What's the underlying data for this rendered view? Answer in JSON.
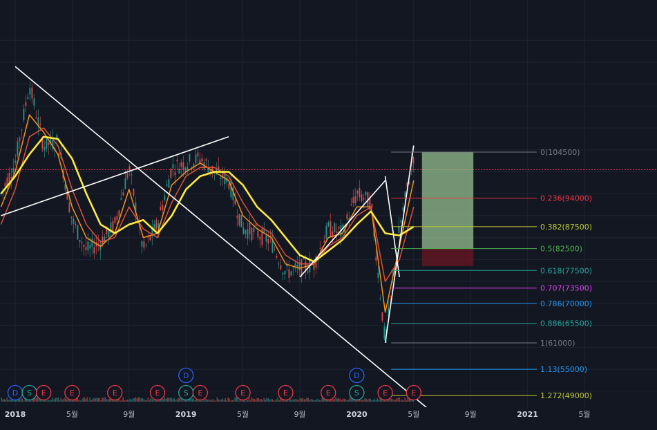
{
  "chart_data": {
    "type": "line",
    "title": "",
    "xlabel": "",
    "ylabel": "",
    "x_ticks": [
      {
        "label": "2018",
        "date": "2018-01",
        "bold": true
      },
      {
        "label": "5월",
        "date": "2018-05",
        "bold": false
      },
      {
        "label": "9월",
        "date": "2018-09",
        "bold": false
      },
      {
        "label": "2019",
        "date": "2019-01",
        "bold": true
      },
      {
        "label": "5월",
        "date": "2019-05",
        "bold": false
      },
      {
        "label": "9월",
        "date": "2019-09",
        "bold": false
      },
      {
        "label": "2020",
        "date": "2020-01",
        "bold": true
      },
      {
        "label": "5월",
        "date": "2020-05",
        "bold": false
      },
      {
        "label": "9월",
        "date": "2020-09",
        "bold": false
      },
      {
        "label": "2021",
        "date": "2021-01",
        "bold": true
      },
      {
        "label": "5월",
        "date": "2021-05",
        "bold": false
      }
    ],
    "price_line": {
      "value": 100500,
      "color": "#f23645"
    },
    "series": [
      {
        "role": "price",
        "color": "#787b86",
        "values": [
          [
            "2017-12",
            95000
          ],
          [
            "2018-01",
            102000
          ],
          [
            "2018-02",
            120000
          ],
          [
            "2018-03",
            106000
          ],
          [
            "2018-04",
            107000
          ],
          [
            "2018-05",
            89000
          ],
          [
            "2018-06",
            82000
          ],
          [
            "2018-07",
            84000
          ],
          [
            "2018-08",
            88000
          ],
          [
            "2018-09",
            101000
          ],
          [
            "2018-10",
            82000
          ],
          [
            "2018-11",
            88000
          ],
          [
            "2018-12",
            101000
          ],
          [
            "2019-01",
            102000
          ],
          [
            "2019-02",
            103000
          ],
          [
            "2019-03",
            100000
          ],
          [
            "2019-04",
            98000
          ],
          [
            "2019-05",
            87000
          ],
          [
            "2019-06",
            86000
          ],
          [
            "2019-07",
            84000
          ],
          [
            "2019-08",
            77000
          ],
          [
            "2019-09",
            78000
          ],
          [
            "2019-10",
            79000
          ],
          [
            "2019-11",
            87000
          ],
          [
            "2019-12",
            86000
          ],
          [
            "2020-01",
            95000
          ],
          [
            "2020-02",
            93000
          ],
          [
            "2020-03",
            61000
          ],
          [
            "2020-04",
            87000
          ],
          [
            "2020-05",
            104000
          ]
        ]
      },
      {
        "role": "ma-short",
        "color": "#f7931a",
        "values": [
          [
            "2017-12",
            92000
          ],
          [
            "2018-01",
            100000
          ],
          [
            "2018-02",
            113000
          ],
          [
            "2018-03",
            109000
          ],
          [
            "2018-04",
            104000
          ],
          [
            "2018-05",
            92000
          ],
          [
            "2018-06",
            85000
          ],
          [
            "2018-07",
            83000
          ],
          [
            "2018-08",
            86000
          ],
          [
            "2018-09",
            96000
          ],
          [
            "2018-10",
            85000
          ],
          [
            "2018-11",
            86000
          ],
          [
            "2018-12",
            97000
          ],
          [
            "2019-01",
            100000
          ],
          [
            "2019-02",
            102000
          ],
          [
            "2019-03",
            100000
          ],
          [
            "2019-04",
            98000
          ],
          [
            "2019-05",
            90000
          ],
          [
            "2019-06",
            87000
          ],
          [
            "2019-07",
            85000
          ],
          [
            "2019-08",
            79000
          ],
          [
            "2019-09",
            78000
          ],
          [
            "2019-10",
            79000
          ],
          [
            "2019-11",
            85000
          ],
          [
            "2019-12",
            86000
          ],
          [
            "2020-01",
            92000
          ],
          [
            "2020-02",
            92000
          ],
          [
            "2020-03",
            68000
          ],
          [
            "2020-04",
            83000
          ],
          [
            "2020-05",
            98000
          ]
        ]
      },
      {
        "role": "ma-mid",
        "color": "#e04f3a",
        "values": [
          [
            "2017-12",
            88000
          ],
          [
            "2018-01",
            96000
          ],
          [
            "2018-02",
            108000
          ],
          [
            "2018-03",
            110000
          ],
          [
            "2018-04",
            106000
          ],
          [
            "2018-05",
            96000
          ],
          [
            "2018-06",
            88000
          ],
          [
            "2018-07",
            84000
          ],
          [
            "2018-08",
            85000
          ],
          [
            "2018-09",
            92000
          ],
          [
            "2018-10",
            87000
          ],
          [
            "2018-11",
            85000
          ],
          [
            "2018-12",
            93000
          ],
          [
            "2019-01",
            99000
          ],
          [
            "2019-02",
            101000
          ],
          [
            "2019-03",
            101000
          ],
          [
            "2019-04",
            99000
          ],
          [
            "2019-05",
            93000
          ],
          [
            "2019-06",
            88000
          ],
          [
            "2019-07",
            86000
          ],
          [
            "2019-08",
            81000
          ],
          [
            "2019-09",
            79000
          ],
          [
            "2019-10",
            79000
          ],
          [
            "2019-11",
            83000
          ],
          [
            "2019-12",
            85000
          ],
          [
            "2020-01",
            90000
          ],
          [
            "2020-02",
            92000
          ],
          [
            "2020-03",
            75000
          ],
          [
            "2020-04",
            80000
          ],
          [
            "2020-05",
            92000
          ]
        ]
      },
      {
        "role": "ma-long",
        "color": "#ffeb3b",
        "values": [
          [
            "2017-12",
            95000
          ],
          [
            "2018-01",
            99000
          ],
          [
            "2018-02",
            104000
          ],
          [
            "2018-03",
            108000
          ],
          [
            "2018-04",
            107500
          ],
          [
            "2018-05",
            103000
          ],
          [
            "2018-06",
            95000
          ],
          [
            "2018-07",
            88000
          ],
          [
            "2018-08",
            86000
          ],
          [
            "2018-09",
            88000
          ],
          [
            "2018-10",
            89000
          ],
          [
            "2018-11",
            86000
          ],
          [
            "2018-12",
            90000
          ],
          [
            "2019-01",
            96000
          ],
          [
            "2019-02",
            99000
          ],
          [
            "2019-03",
            100000
          ],
          [
            "2019-04",
            100000
          ],
          [
            "2019-05",
            97000
          ],
          [
            "2019-06",
            92000
          ],
          [
            "2019-07",
            89000
          ],
          [
            "2019-08",
            85000
          ],
          [
            "2019-09",
            81000
          ],
          [
            "2019-10",
            79500
          ],
          [
            "2019-11",
            82000
          ],
          [
            "2019-12",
            84500
          ],
          [
            "2020-01",
            88000
          ],
          [
            "2020-02",
            91000
          ],
          [
            "2020-03",
            86000
          ],
          [
            "2020-04",
            85500
          ],
          [
            "2020-05",
            87500
          ]
        ]
      }
    ],
    "trend_lines": [
      {
        "from": [
          "2018-01",
          124000
        ],
        "to": [
          "2020-06",
          46000
        ]
      },
      {
        "from": [
          "2017-12",
          90000
        ],
        "to": [
          "2019-04",
          108000
        ]
      },
      {
        "from": [
          "2019-09",
          76000
        ],
        "to": [
          "2020-03",
          98000
        ]
      },
      {
        "from": [
          "2020-03",
          99000
        ],
        "to": [
          "2020-04",
          76000
        ]
      },
      {
        "from": [
          "2020-03",
          61000
        ],
        "to": [
          "2020-05",
          106000
        ]
      }
    ],
    "fibonacci": {
      "anchor_high": 104500,
      "anchor_low": 61000,
      "levels": [
        {
          "ratio": "0",
          "price": "104500",
          "value": 104500,
          "color": "#787b86"
        },
        {
          "ratio": "0.236",
          "price": "94000",
          "value": 94000,
          "color": "#f23645"
        },
        {
          "ratio": "0.382",
          "price": "87500",
          "value": 87500,
          "color": "#c0ca33"
        },
        {
          "ratio": "0.5",
          "price": "82500",
          "value": 82500,
          "color": "#4caf50"
        },
        {
          "ratio": "0.618",
          "price": "77500",
          "value": 77500,
          "color": "#26a69a"
        },
        {
          "ratio": "0.707",
          "price": "73500",
          "value": 73500,
          "color": "#e040fb"
        },
        {
          "ratio": "0.786",
          "price": "70000",
          "value": 70000,
          "color": "#2196f3"
        },
        {
          "ratio": "0.886",
          "price": "65500",
          "value": 65500,
          "color": "#26a69a"
        },
        {
          "ratio": "1",
          "price": "61000",
          "value": 61000,
          "color": "#787b86"
        },
        {
          "ratio": "1.13",
          "price": "55000",
          "value": 55000,
          "color": "#2196f3"
        },
        {
          "ratio": "1.272",
          "price": "49000",
          "value": 49000,
          "color": "#c0ca33"
        }
      ]
    },
    "position_box": {
      "profit": {
        "from": 104500,
        "to": 82500
      },
      "loss": {
        "from": 82500,
        "to": 78500
      },
      "start": "2020-05",
      "end": "2020-09"
    },
    "events": [
      {
        "letter": "D",
        "date": "2018-01",
        "row": "bottom",
        "color": "#2962ff"
      },
      {
        "letter": "S",
        "date": "2018-02",
        "row": "bottom",
        "color": "#26a69a"
      },
      {
        "letter": "E",
        "date": "2018-03",
        "row": "bottom",
        "color": "#f23645"
      },
      {
        "letter": "E",
        "date": "2018-05",
        "row": "bottom",
        "color": "#f23645"
      },
      {
        "letter": "E",
        "date": "2018-08",
        "row": "bottom",
        "color": "#f23645"
      },
      {
        "letter": "E",
        "date": "2018-11",
        "row": "bottom",
        "color": "#f23645"
      },
      {
        "letter": "D",
        "date": "2019-01",
        "row": "top",
        "color": "#2962ff"
      },
      {
        "letter": "S",
        "date": "2019-01",
        "row": "bottom",
        "color": "#26a69a"
      },
      {
        "letter": "E",
        "date": "2019-02",
        "row": "bottom",
        "color": "#f23645"
      },
      {
        "letter": "E",
        "date": "2019-05",
        "row": "bottom",
        "color": "#f23645"
      },
      {
        "letter": "E",
        "date": "2019-08",
        "row": "bottom",
        "color": "#f23645"
      },
      {
        "letter": "E",
        "date": "2019-11",
        "row": "bottom",
        "color": "#f23645"
      },
      {
        "letter": "D",
        "date": "2020-01",
        "row": "top",
        "color": "#2962ff"
      },
      {
        "letter": "S",
        "date": "2020-01",
        "row": "bottom",
        "color": "#26a69a"
      },
      {
        "letter": "E",
        "date": "2020-03",
        "row": "bottom",
        "color": "#f23645"
      },
      {
        "letter": "E",
        "date": "2020-05",
        "row": "bottom",
        "color": "#f23645"
      }
    ]
  }
}
